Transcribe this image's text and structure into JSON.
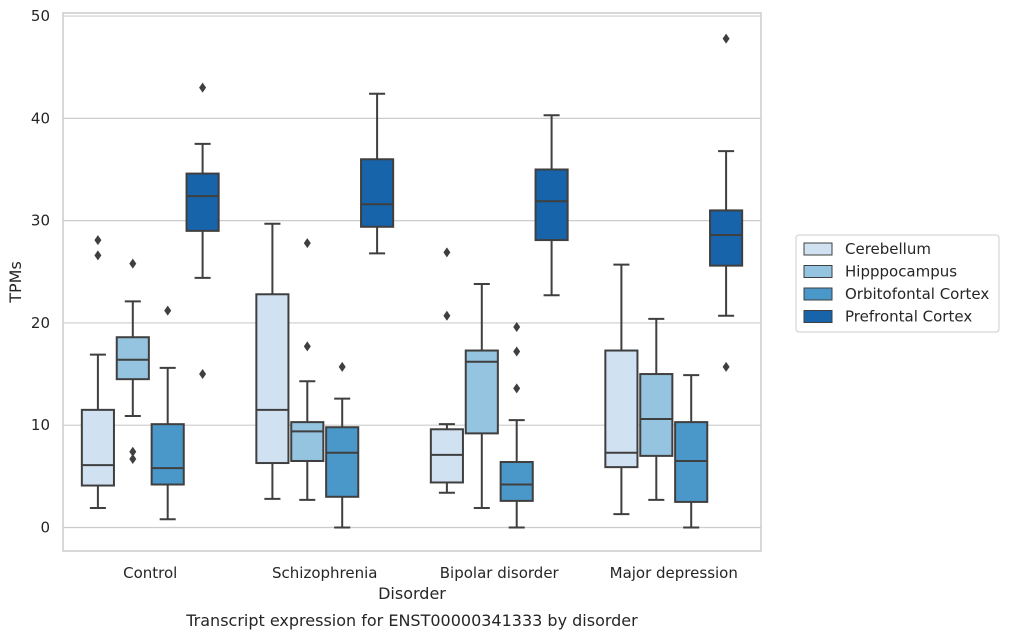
{
  "chart_data": {
    "type": "boxplot",
    "xlabel": "Disorder",
    "ylabel": "TPMs",
    "caption": "Transcript expression for ENST00000341333 by disorder",
    "ylim": [
      -2.3,
      50.3
    ],
    "yticks": [
      "0",
      "10",
      "20",
      "30",
      "40",
      "50"
    ],
    "categories": [
      "Control",
      "Schizophrenia",
      "Bipolar disorder",
      "Major depression"
    ],
    "grid": "horizontal",
    "legend_position": "right",
    "series": [
      {
        "name": "Cerebellum",
        "color": "#d0e1f2",
        "boxes": [
          {
            "whisker_low": 1.9,
            "q1": 4.1,
            "median": 6.1,
            "q3": 11.5,
            "whisker_high": 16.9,
            "outliers": [
              26.6,
              28.1
            ]
          },
          {
            "whisker_low": 2.8,
            "q1": 6.3,
            "median": 11.5,
            "q3": 22.8,
            "whisker_high": 29.7,
            "outliers": []
          },
          {
            "whisker_low": 3.4,
            "q1": 4.4,
            "median": 7.1,
            "q3": 9.6,
            "whisker_high": 10.1,
            "outliers": [
              20.7,
              26.9
            ]
          },
          {
            "whisker_low": 1.3,
            "q1": 5.9,
            "median": 7.3,
            "q3": 17.3,
            "whisker_high": 25.7,
            "outliers": []
          }
        ]
      },
      {
        "name": "Hipppocampus",
        "color": "#94c4df",
        "boxes": [
          {
            "whisker_low": 10.9,
            "q1": 14.5,
            "median": 16.4,
            "q3": 18.6,
            "whisker_high": 22.1,
            "outliers": [
              6.7,
              7.4,
              25.8
            ]
          },
          {
            "whisker_low": 2.7,
            "q1": 6.5,
            "median": 9.4,
            "q3": 10.3,
            "whisker_high": 14.3,
            "outliers": [
              17.7,
              27.8
            ]
          },
          {
            "whisker_low": 1.9,
            "q1": 9.2,
            "median": 16.2,
            "q3": 17.3,
            "whisker_high": 23.8,
            "outliers": []
          },
          {
            "whisker_low": 2.7,
            "q1": 7.0,
            "median": 10.6,
            "q3": 15.0,
            "whisker_high": 20.4,
            "outliers": []
          }
        ]
      },
      {
        "name": "Orbitofontal Cortex",
        "color": "#4a98c9",
        "boxes": [
          {
            "whisker_low": 0.8,
            "q1": 4.2,
            "median": 5.8,
            "q3": 10.1,
            "whisker_high": 15.6,
            "outliers": [
              21.2
            ]
          },
          {
            "whisker_low": 0.0,
            "q1": 3.0,
            "median": 7.3,
            "q3": 9.8,
            "whisker_high": 12.6,
            "outliers": [
              15.7
            ]
          },
          {
            "whisker_low": 0.0,
            "q1": 2.6,
            "median": 4.2,
            "q3": 6.4,
            "whisker_high": 10.5,
            "outliers": [
              13.6,
              17.2,
              19.6
            ]
          },
          {
            "whisker_low": 0.0,
            "q1": 2.5,
            "median": 6.5,
            "q3": 10.3,
            "whisker_high": 14.9,
            "outliers": []
          }
        ]
      },
      {
        "name": "Prefrontal Cortex",
        "color": "#1764ab",
        "boxes": [
          {
            "whisker_low": 24.4,
            "q1": 29.0,
            "median": 32.4,
            "q3": 34.6,
            "whisker_high": 37.5,
            "outliers": [
              15.0,
              43.0
            ]
          },
          {
            "whisker_low": 26.8,
            "q1": 29.4,
            "median": 31.6,
            "q3": 36.0,
            "whisker_high": 42.4,
            "outliers": []
          },
          {
            "whisker_low": 22.7,
            "q1": 28.1,
            "median": 31.9,
            "q3": 35.0,
            "whisker_high": 40.3,
            "outliers": []
          },
          {
            "whisker_low": 20.7,
            "q1": 25.6,
            "median": 28.6,
            "q3": 31.0,
            "whisker_high": 36.8,
            "outliers": [
              15.7,
              47.8
            ]
          }
        ]
      }
    ]
  }
}
